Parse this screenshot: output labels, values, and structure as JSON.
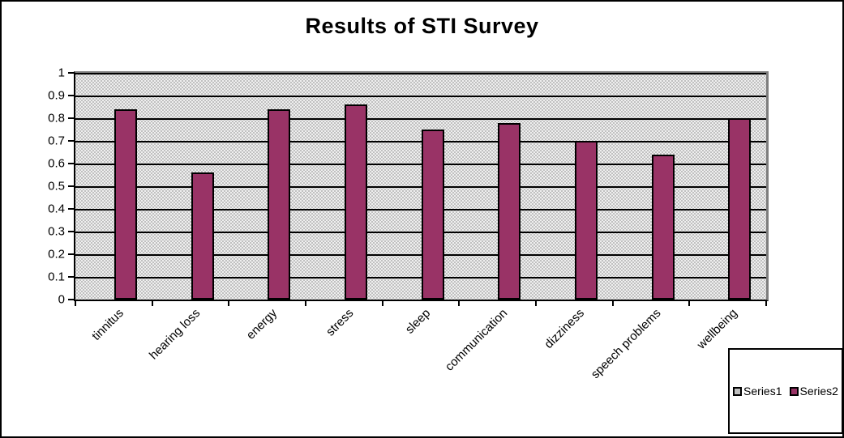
{
  "chart_data": {
    "type": "bar",
    "title": "Results of STI Survey",
    "categories": [
      "tinnitus",
      "hearing loss",
      "energy",
      "stress",
      "sleep",
      "communication",
      "dizziness",
      "speech problems",
      "wellbeing"
    ],
    "series": [
      {
        "name": "Series1",
        "color": "#c0c0c0",
        "values": []
      },
      {
        "name": "Series2",
        "color": "#993366",
        "values": [
          0.84,
          0.56,
          0.84,
          0.86,
          0.75,
          0.78,
          0.7,
          0.64,
          0.8
        ]
      }
    ],
    "ylim": [
      0,
      1
    ],
    "yticks": [
      "1",
      "0.9",
      "0.8",
      "0.7",
      "0.6",
      "0.5",
      "0.4",
      "0.3",
      "0.2",
      "0.1",
      "0"
    ],
    "grid": true,
    "gridline_color": "#000000",
    "plot_background": "#c0c0c0",
    "legend": {
      "position": "bottom-right",
      "entries": [
        "Series1",
        "Series2"
      ]
    }
  }
}
